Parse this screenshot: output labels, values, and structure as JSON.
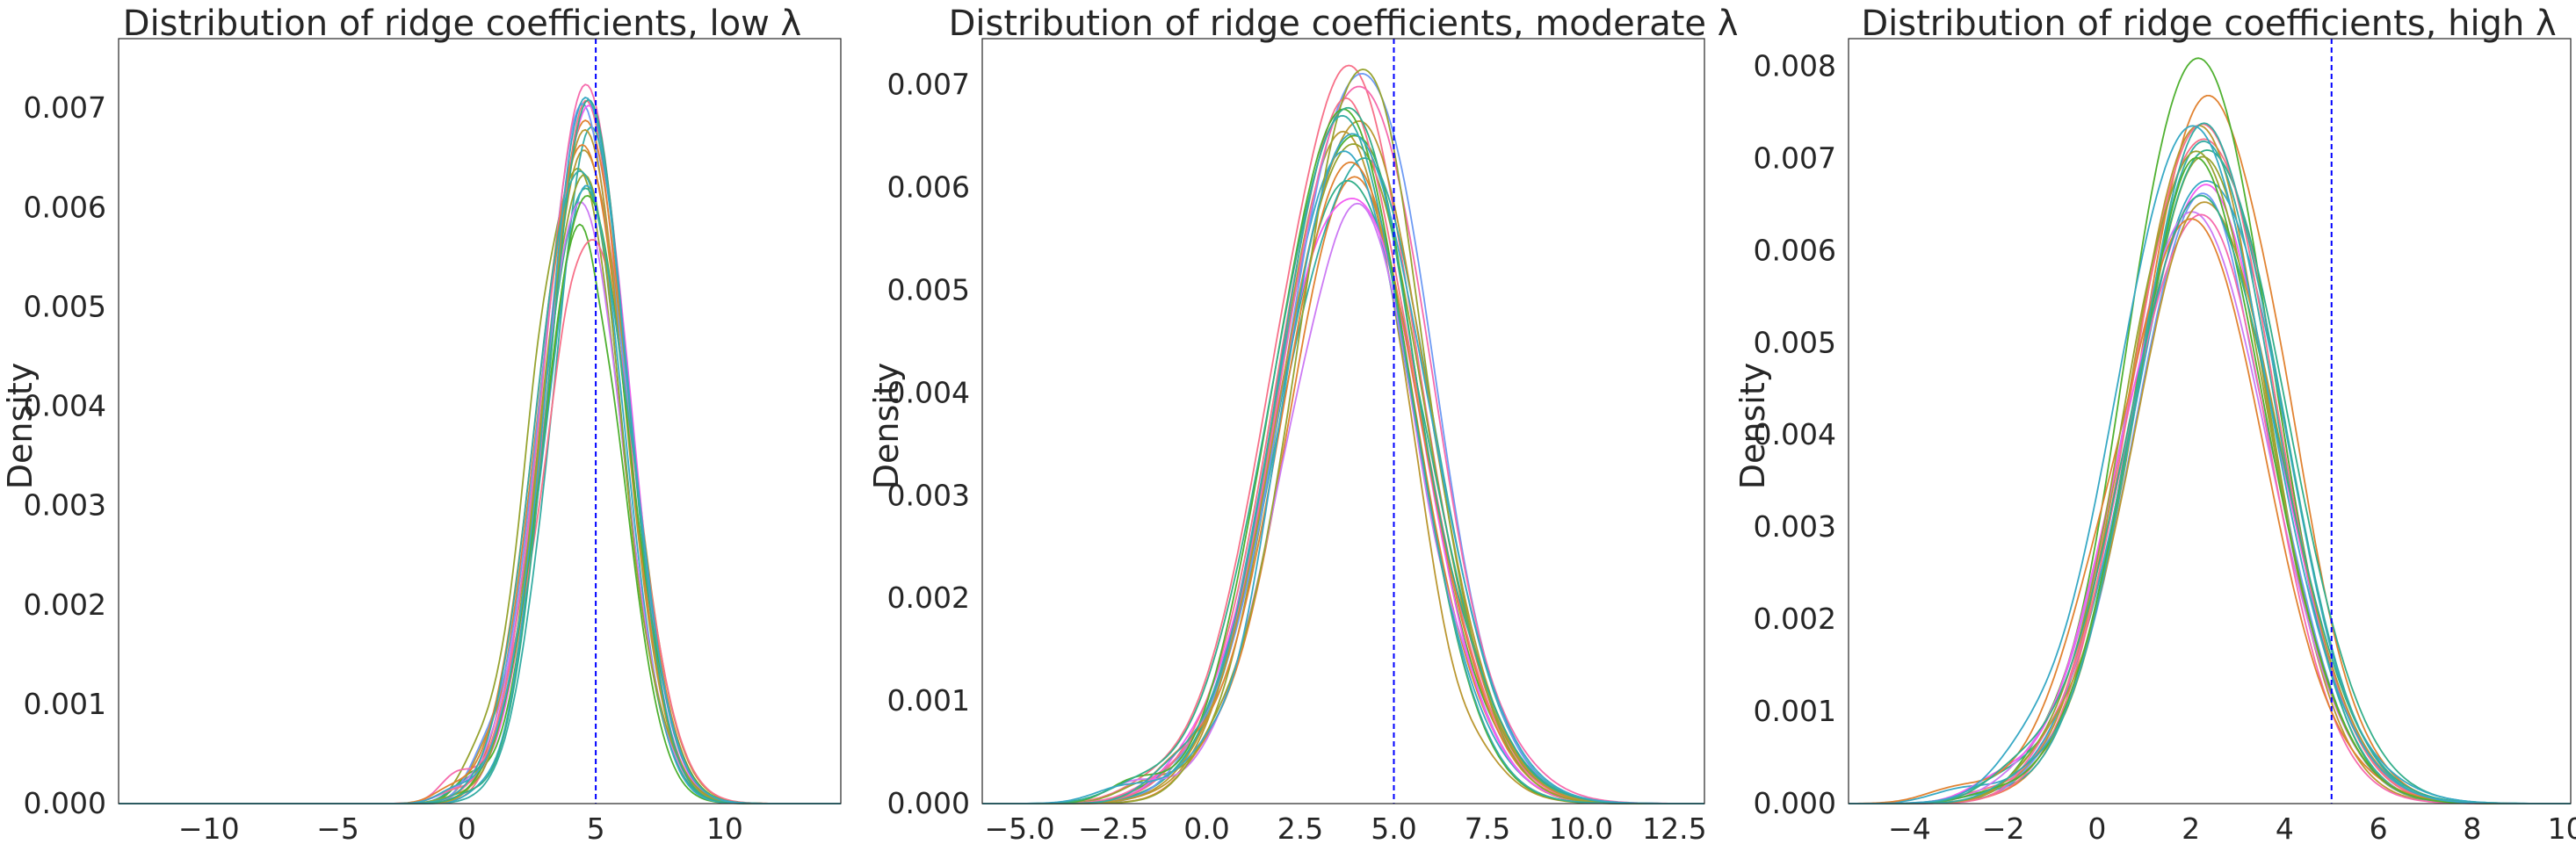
{
  "chart_data": [
    {
      "type": "line",
      "title": "Distribution of ridge coefficients, low λ",
      "ylabel": "Density",
      "xlim": [
        -13.5,
        14.5
      ],
      "ylim": [
        0,
        0.0077
      ],
      "xticks": [
        -10,
        -5,
        0,
        5,
        10
      ],
      "xticklabels": [
        "−10",
        "−5",
        "0",
        "5",
        "10"
      ],
      "yticks": [
        0,
        0.001,
        0.002,
        0.003,
        0.004,
        0.005,
        0.006,
        0.007
      ],
      "yticklabels": [
        "0.000",
        "0.001",
        "0.002",
        "0.003",
        "0.004",
        "0.005",
        "0.006",
        "0.007"
      ],
      "reference_line_x": 5,
      "reference_line_color": "#0000ff",
      "curve_count": 20,
      "curve_center": 4.5,
      "curve_sd": 1.6,
      "curve_peak_range": [
        0.0059,
        0.0073
      ],
      "grid": false
    },
    {
      "type": "line",
      "title": "Distribution of ridge coefficients, moderate λ",
      "ylabel": "Density",
      "xlim": [
        -6,
        13.3
      ],
      "ylim": [
        0,
        0.00745
      ],
      "xticks": [
        -5.0,
        -2.5,
        0.0,
        2.5,
        5.0,
        7.5,
        10.0,
        12.5
      ],
      "xticklabels": [
        "−5.0",
        "−2.5",
        "0.0",
        "2.5",
        "5.0",
        "7.5",
        "10.0",
        "12.5"
      ],
      "yticks": [
        0,
        0.001,
        0.002,
        0.003,
        0.004,
        0.005,
        0.006,
        0.007
      ],
      "yticklabels": [
        "0.000",
        "0.001",
        "0.002",
        "0.003",
        "0.004",
        "0.005",
        "0.006",
        "0.007"
      ],
      "reference_line_x": 5,
      "reference_line_color": "#0000ff",
      "curve_count": 20,
      "curve_center": 3.85,
      "curve_sd": 1.9,
      "curve_peak_range": [
        0.0059,
        0.0071
      ],
      "grid": false
    },
    {
      "type": "line",
      "title": "Distribution of ridge coefficients, high λ",
      "ylabel": "Density",
      "xlim": [
        -5.3,
        10.1
      ],
      "ylim": [
        0,
        0.0083
      ],
      "xticks": [
        -4,
        -2,
        0,
        2,
        4,
        6,
        8,
        10
      ],
      "xticklabels": [
        "−4",
        "−2",
        "0",
        "2",
        "4",
        "6",
        "8",
        "10"
      ],
      "yticks": [
        0,
        0.001,
        0.002,
        0.003,
        0.004,
        0.005,
        0.006,
        0.007,
        0.008
      ],
      "yticklabels": [
        "0.000",
        "0.001",
        "0.002",
        "0.003",
        "0.004",
        "0.005",
        "0.006",
        "0.007",
        "0.008"
      ],
      "reference_line_x": 5,
      "reference_line_color": "#0000ff",
      "curve_count": 20,
      "curve_center": 2.25,
      "curve_sd": 1.55,
      "curve_peak_range": [
        0.0063,
        0.0079
      ],
      "grid": false
    }
  ],
  "palette": [
    "#f77189",
    "#e18332",
    "#bb9832",
    "#97a431",
    "#50b131",
    "#34af8a",
    "#36ada4",
    "#38a9c5",
    "#6e9bf4",
    "#cc7af4",
    "#f45cf2",
    "#f66bad"
  ]
}
